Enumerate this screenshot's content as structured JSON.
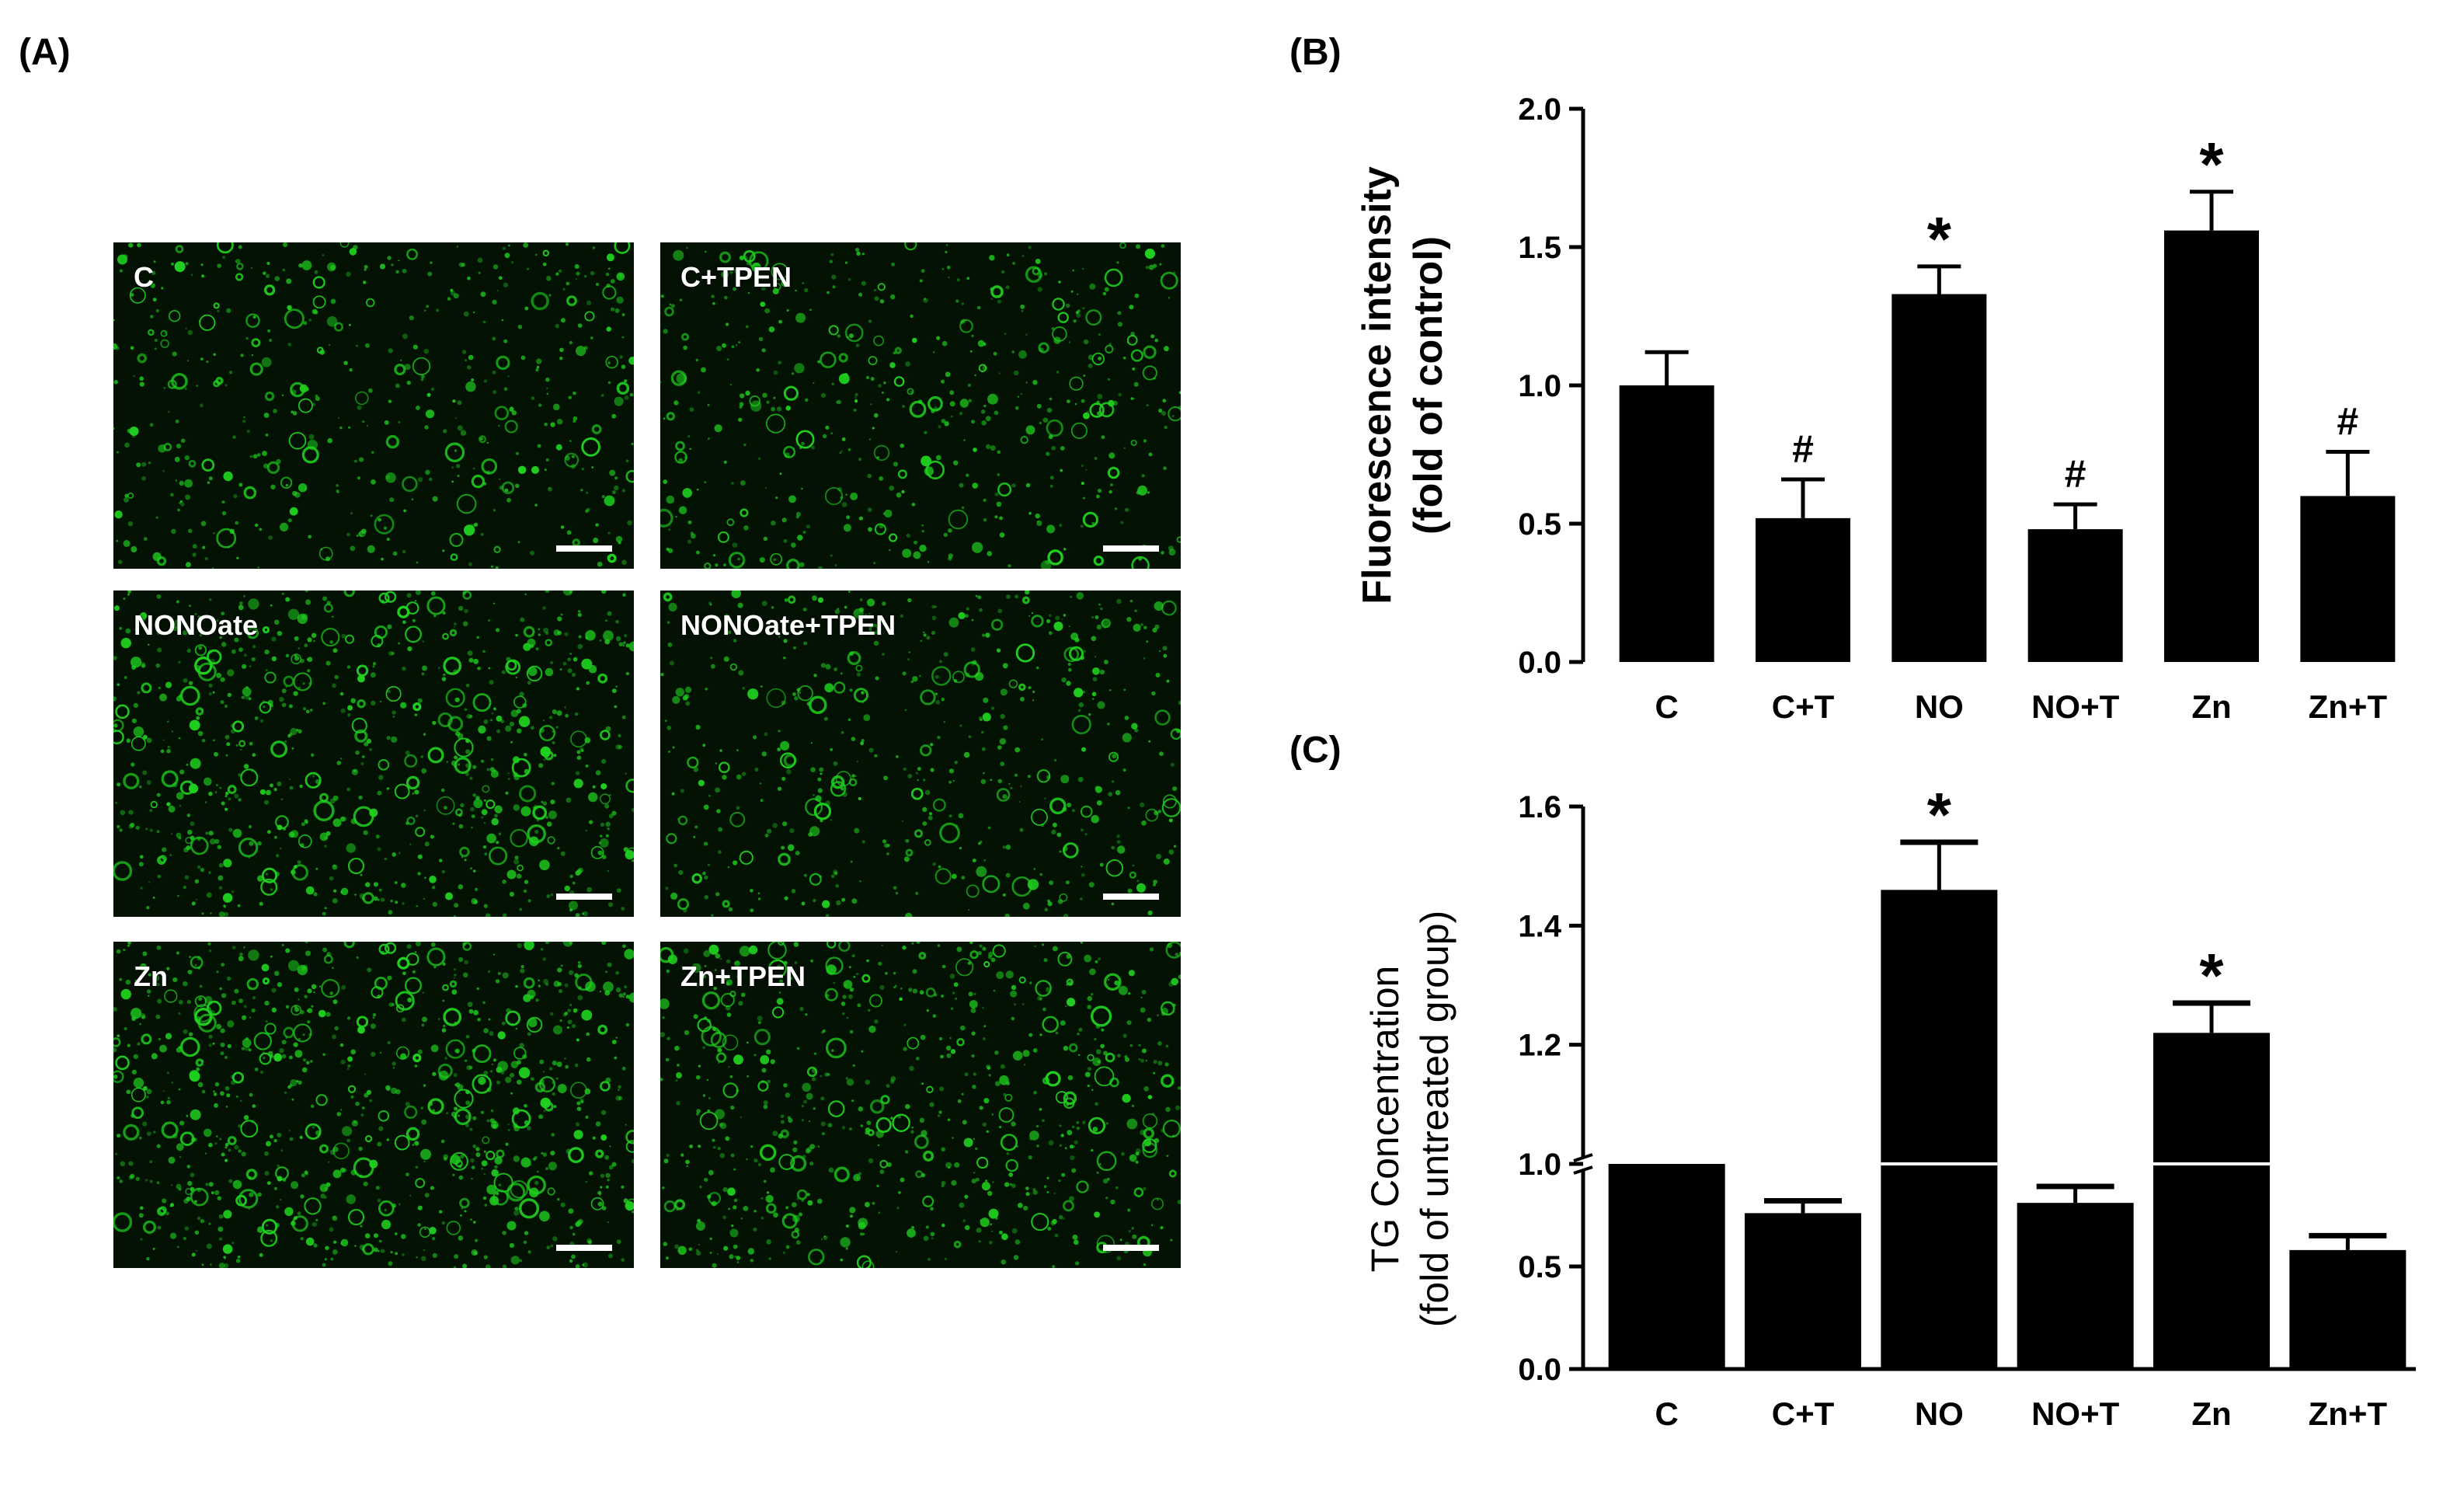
{
  "panel_a": {
    "label": "(A)",
    "images": [
      {
        "label": "C",
        "density": 0.55
      },
      {
        "label": "C+TPEN",
        "density": 0.55
      },
      {
        "label": "NONOate",
        "density": 0.85
      },
      {
        "label": "NONOate+TPEN",
        "density": 0.55
      },
      {
        "label": "Zn",
        "density": 0.95
      },
      {
        "label": "Zn+TPEN",
        "density": 0.75
      }
    ],
    "fluorescence_color": "#1fd01f"
  },
  "chart_data": [
    {
      "panel": "(B)",
      "type": "bar",
      "categories": [
        "C",
        "C+T",
        "NO",
        "NO+T",
        "Zn",
        "Zn+T"
      ],
      "values": [
        1.0,
        0.52,
        1.33,
        0.48,
        1.56,
        0.6
      ],
      "errors": [
        0.12,
        0.14,
        0.1,
        0.09,
        0.14,
        0.16
      ],
      "annotations": [
        "",
        "#",
        "*",
        "#",
        "*",
        "#"
      ],
      "ylabel": [
        "Fluorescence intensity",
        "(fold of control)"
      ],
      "xlabel": "",
      "ylim": [
        0,
        2.0
      ],
      "yticks": [
        "0.0",
        "0.5",
        "1.0",
        "1.5",
        "2.0"
      ],
      "bar_color": "#000000"
    },
    {
      "panel": "(C)",
      "type": "bar",
      "categories": [
        "C",
        "C+T",
        "NO",
        "NO+T",
        "Zn",
        "Zn+T"
      ],
      "values": [
        1.0,
        0.76,
        1.46,
        0.81,
        1.22,
        0.58
      ],
      "errors": [
        0.0,
        0.06,
        0.08,
        0.08,
        0.05,
        0.07
      ],
      "annotations": [
        "",
        "",
        "*",
        "",
        "*",
        ""
      ],
      "ylabel": [
        "TG Concentration",
        "(fold of untreated group)"
      ],
      "xlabel": "",
      "axis_break": 1.0,
      "ylim_lower": [
        0,
        1.0
      ],
      "ylim_upper": [
        1.0,
        1.6
      ],
      "yticks": [
        "0.0",
        "0.5",
        "1.0",
        "1.2",
        "1.4",
        "1.6"
      ],
      "bar_color": "#000000"
    }
  ]
}
